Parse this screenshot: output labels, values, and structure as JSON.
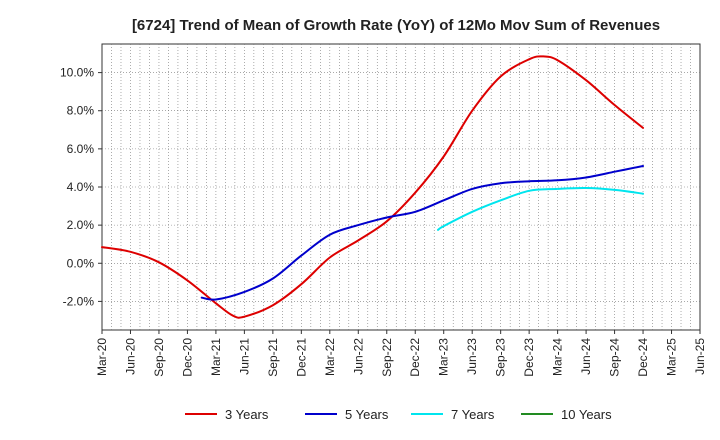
{
  "chart_data": {
    "type": "line",
    "title": "[6724]  Trend of Mean of Growth Rate (YoY) of 12Mo Mov Sum of Revenues",
    "xlabel": "",
    "ylabel": "",
    "ylim": [
      -3.5,
      11.5
    ],
    "yticks": [
      -2.0,
      0.0,
      2.0,
      4.0,
      6.0,
      8.0,
      10.0
    ],
    "ytick_labels": [
      "-2.0%",
      "0.0%",
      "2.0%",
      "4.0%",
      "6.0%",
      "8.0%",
      "10.0%"
    ],
    "x_tick_labels": [
      "Mar-20",
      "Jun-20",
      "Sep-20",
      "Dec-20",
      "Mar-21",
      "Jun-21",
      "Sep-21",
      "Dec-21",
      "Mar-22",
      "Jun-22",
      "Sep-22",
      "Dec-22",
      "Mar-23",
      "Jun-23",
      "Sep-23",
      "Dec-23",
      "Mar-24",
      "Jun-24",
      "Sep-24",
      "Dec-24",
      "Mar-25",
      "Jun-25"
    ],
    "grid": true,
    "legend_position": "bottom",
    "series": [
      {
        "name": "3 Years",
        "color": "#dd0000",
        "points": [
          [
            0,
            0.85
          ],
          [
            1,
            0.6
          ],
          [
            2,
            0.05
          ],
          [
            3,
            -0.9
          ],
          [
            4,
            -2.1
          ],
          [
            4.6,
            -2.75
          ],
          [
            5,
            -2.8
          ],
          [
            6,
            -2.2
          ],
          [
            7,
            -1.1
          ],
          [
            8,
            0.3
          ],
          [
            9,
            1.2
          ],
          [
            10,
            2.2
          ],
          [
            11,
            3.7
          ],
          [
            12,
            5.6
          ],
          [
            13,
            8.0
          ],
          [
            14,
            9.8
          ],
          [
            15,
            10.7
          ],
          [
            15.5,
            10.85
          ],
          [
            16,
            10.65
          ],
          [
            17,
            9.6
          ],
          [
            18,
            8.3
          ],
          [
            19,
            7.1
          ]
        ]
      },
      {
        "name": "5 Years",
        "color": "#0000cc",
        "points": [
          [
            3.5,
            -1.8
          ],
          [
            4,
            -1.9
          ],
          [
            5,
            -1.5
          ],
          [
            6,
            -0.8
          ],
          [
            7,
            0.4
          ],
          [
            8,
            1.5
          ],
          [
            9,
            2.0
          ],
          [
            10,
            2.4
          ],
          [
            11,
            2.7
          ],
          [
            12,
            3.3
          ],
          [
            13,
            3.9
          ],
          [
            14,
            4.2
          ],
          [
            15,
            4.3
          ],
          [
            16,
            4.35
          ],
          [
            17,
            4.5
          ],
          [
            18,
            4.8
          ],
          [
            19,
            5.1
          ]
        ]
      },
      {
        "name": "7 Years",
        "color": "#00e5ee",
        "points": [
          [
            11.8,
            1.75
          ],
          [
            12,
            1.95
          ],
          [
            13,
            2.7
          ],
          [
            14,
            3.3
          ],
          [
            15,
            3.8
          ],
          [
            16,
            3.9
          ],
          [
            17,
            3.95
          ],
          [
            18,
            3.85
          ],
          [
            19,
            3.65
          ]
        ]
      },
      {
        "name": "10 Years",
        "color": "#228b22",
        "points": []
      }
    ]
  }
}
